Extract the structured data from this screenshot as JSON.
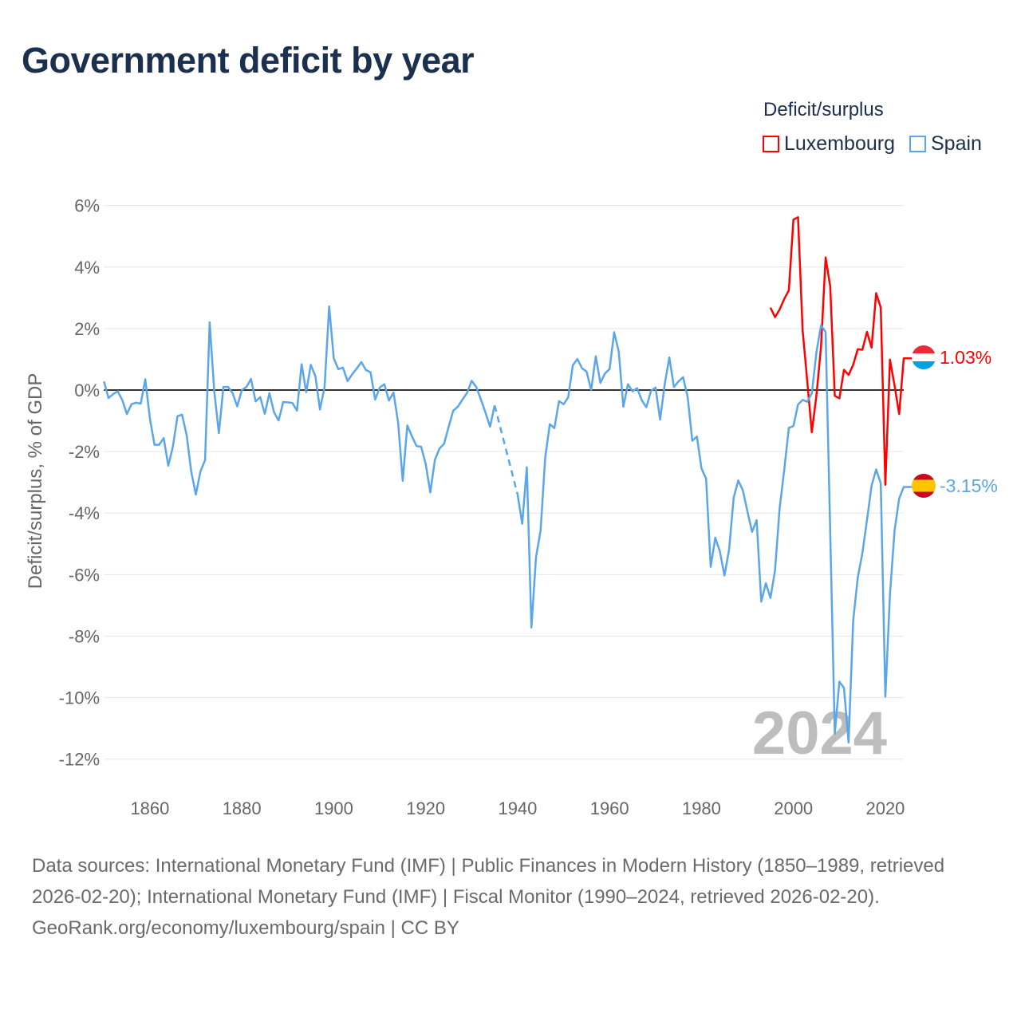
{
  "title": "Government deficit by year",
  "legend": {
    "title": "Deficit/surplus",
    "items": [
      {
        "label": "Luxembourg",
        "color": "#ff0000"
      },
      {
        "label": "Spain",
        "color": "#5ba6e9"
      }
    ]
  },
  "chart_data": {
    "type": "line",
    "title": "Government deficit by year",
    "xlabel": "",
    "ylabel": "Deficit/surplus, % of GDP",
    "xlim": [
      1850,
      2024
    ],
    "ylim": [
      -12,
      6
    ],
    "grid": true,
    "legend_position": "top-right",
    "xticks": [
      1860,
      1880,
      1900,
      1920,
      1940,
      1960,
      1980,
      2000,
      2020
    ],
    "yticks": [
      {
        "value": 6,
        "label": "6%"
      },
      {
        "value": 4,
        "label": "4%"
      },
      {
        "value": 2,
        "label": "2%"
      },
      {
        "value": 0,
        "label": "0%"
      },
      {
        "value": -2,
        "label": "-2%"
      },
      {
        "value": -4,
        "label": "-4%"
      },
      {
        "value": -6,
        "label": "-6%"
      },
      {
        "value": -8,
        "label": "-8%"
      },
      {
        "value": -10,
        "label": "-10%"
      },
      {
        "value": -12,
        "label": "-12%"
      }
    ],
    "year_watermark": "2024",
    "series": [
      {
        "name": "Luxembourg",
        "color": "#ff0000",
        "start_year": 1995,
        "values": [
          2.68,
          2.37,
          2.62,
          2.96,
          3.24,
          5.54,
          5.62,
          1.95,
          0.3,
          -1.37,
          -0.18,
          1.4,
          4.31,
          3.38,
          -0.19,
          -0.27,
          0.66,
          0.49,
          0.82,
          1.33,
          1.31,
          1.89,
          1.38,
          3.15,
          2.68,
          -3.08,
          0.99,
          0.15,
          -0.78,
          1.03
        ],
        "end_label": "1.03%",
        "flag": "luxembourg-flag"
      },
      {
        "name": "Spain",
        "color": "#5ba6e9",
        "start_year": 1850,
        "values": [
          0.28,
          -0.26,
          -0.13,
          -0.04,
          -0.33,
          -0.78,
          -0.46,
          -0.41,
          -0.44,
          0.35,
          -0.93,
          -1.78,
          -1.78,
          -1.56,
          -2.46,
          -1.84,
          -0.85,
          -0.8,
          -1.47,
          -2.66,
          -3.4,
          -2.64,
          -2.28,
          2.2,
          -0.03,
          -1.4,
          0.1,
          0.1,
          -0.1,
          -0.53,
          0,
          0.1,
          0.36,
          -0.37,
          -0.23,
          -0.77,
          -0.1,
          -0.72,
          -0.99,
          -0.39,
          -0.4,
          -0.42,
          -0.67,
          0.84,
          -0.07,
          0.82,
          0.45,
          -0.63,
          0.1,
          2.72,
          1.03,
          0.68,
          0.73,
          0.29,
          0.51,
          0.7,
          0.91,
          0.65,
          0.58,
          -0.31,
          0.08,
          0.19,
          -0.34,
          -0.08,
          -1.06,
          -2.95,
          -1.15,
          -1.5,
          -1.82,
          -1.84,
          -2.4,
          -3.33,
          -2.27,
          -1.9,
          -1.75,
          -1.19,
          -0.67,
          -0.54,
          -0.31,
          -0.09,
          0.3,
          0.1,
          -0.3,
          -0.73,
          -1.19,
          -0.5,
          null,
          null,
          null,
          null,
          -3.4,
          -4.35,
          -2.51,
          -7.72,
          -5.43,
          -4.56,
          -2.19,
          -1.11,
          -1.24,
          -0.36,
          -0.46,
          -0.24,
          0.8,
          1.01,
          0.71,
          0.6,
          0,
          1.1,
          0.23,
          0.54,
          0.68,
          1.88,
          1.25,
          -0.54,
          0.19,
          -0.04,
          0.06,
          -0.33,
          -0.56,
          -0.03,
          0.08,
          -0.96,
          0.19,
          1.06,
          0.1,
          0.28,
          0.42,
          -0.24,
          -1.65,
          -1.51,
          -2.55,
          -2.88,
          -5.75,
          -4.8,
          -5.25,
          -6.03,
          -5.19,
          -3.5,
          -2.94,
          -3.26,
          -3.95,
          -4.61,
          -4.23,
          -6.88,
          -6.28,
          -6.76,
          -5.86,
          -3.84,
          -2.6,
          -1.23,
          -1.17,
          -0.47,
          -0.32,
          -0.38,
          -0.11,
          1.22,
          2.1,
          1.89,
          -4.6,
          -11.17,
          -9.48,
          -9.69,
          -11.46,
          -7.5,
          -6.09,
          -5.3,
          -4.23,
          -3.11,
          -2.58,
          -3.03,
          -9.97,
          -6.65,
          -4.57,
          -3.53,
          -3.15
        ],
        "end_label": "-3.15%",
        "flag": "spain-flag"
      }
    ]
  },
  "footer": {
    "sources": "Data sources: International Monetary Fund (IMF) | Public Finances in Modern History (1850–1989, retrieved 2026-02-20); International Monetary Fund (IMF) | Fiscal Monitor (1990–2024, retrieved 2026-02-20).",
    "credit": "GeoRank.org/economy/luxembourg/spain | CC BY"
  }
}
